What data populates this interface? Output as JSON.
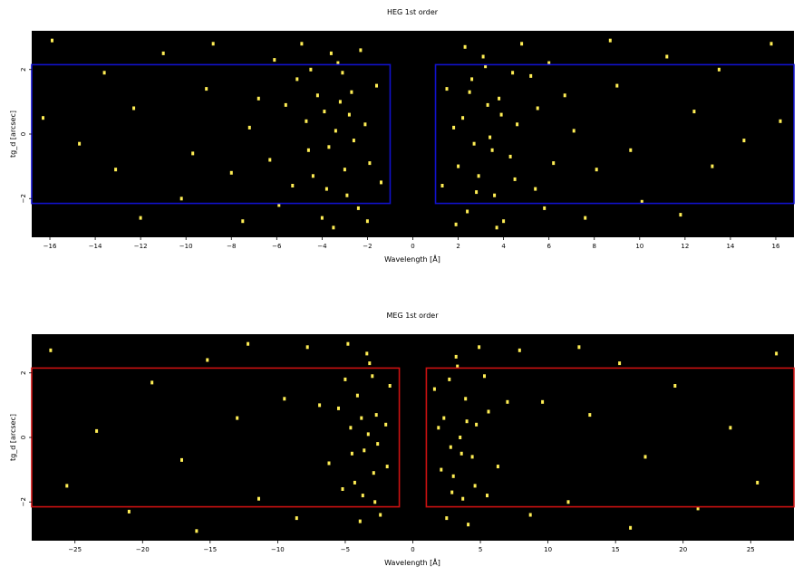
{
  "colors": {
    "background": "#000000",
    "events": "#ffee55",
    "heg_region": "#1111cc",
    "meg_region": "#cc1111",
    "page": "#ffffff"
  },
  "chart_data": [
    {
      "type": "scatter",
      "title": "HEG 1st order",
      "xlabel": "Wavelength [Å]",
      "ylabel": "tg_d [arcsec]",
      "xlim": [
        -16.8,
        16.8
      ],
      "ylim": [
        -3.2,
        3.2
      ],
      "xticks": [
        -16,
        -14,
        -12,
        -10,
        -8,
        -6,
        -4,
        -2,
        0,
        2,
        4,
        6,
        8,
        10,
        12,
        14,
        16
      ],
      "xtick_labels": [
        "−16",
        "−14",
        "−12",
        "−10",
        "−8",
        "−6",
        "−4",
        "−2",
        "0",
        "2",
        "4",
        "6",
        "8",
        "10",
        "12",
        "14",
        "16"
      ],
      "yticks": [
        -2,
        0,
        2
      ],
      "ytick_labels": [
        "−2",
        "0",
        "2"
      ],
      "grid": false,
      "regions": [
        {
          "x": [
            -17.0,
            -1.0
          ],
          "y": [
            -2.15,
            2.15
          ]
        },
        {
          "x": [
            1.0,
            17.0
          ],
          "y": [
            -2.15,
            2.15
          ]
        }
      ],
      "points": [
        [
          -3.6,
          2.5
        ],
        [
          -3.1,
          1.9
        ],
        [
          -4.2,
          1.2
        ],
        [
          -2.8,
          0.6
        ],
        [
          -3.4,
          0.1
        ],
        [
          -4.6,
          -0.5
        ],
        [
          -3.0,
          -1.1
        ],
        [
          -3.8,
          -1.7
        ],
        [
          -2.4,
          -2.3
        ],
        [
          -4.9,
          2.8
        ],
        [
          -5.6,
          0.9
        ],
        [
          -2.1,
          0.3
        ],
        [
          -1.6,
          1.5
        ],
        [
          -6.3,
          -0.8
        ],
        [
          -3.3,
          2.2
        ],
        [
          -4.0,
          -2.6
        ],
        [
          -2.6,
          -0.2
        ],
        [
          -3.9,
          0.7
        ],
        [
          -4.4,
          -1.3
        ],
        [
          -5.1,
          1.7
        ],
        [
          -2.9,
          -1.9
        ],
        [
          -3.7,
          -0.4
        ],
        [
          -1.9,
          -0.9
        ],
        [
          -5.3,
          -1.6
        ],
        [
          -4.7,
          0.4
        ],
        [
          -3.2,
          1.0
        ],
        [
          -2.3,
          2.6
        ],
        [
          -6.1,
          2.3
        ],
        [
          -7.2,
          0.2
        ],
        [
          -8.0,
          -1.2
        ],
        [
          -9.1,
          1.4
        ],
        [
          -10.2,
          -2.0
        ],
        [
          -11.0,
          2.5
        ],
        [
          -12.3,
          0.8
        ],
        [
          -13.6,
          1.9
        ],
        [
          -14.7,
          -0.3
        ],
        [
          -15.9,
          2.9
        ],
        [
          -8.8,
          2.8
        ],
        [
          -7.5,
          -2.7
        ],
        [
          -6.8,
          1.1
        ],
        [
          -4.5,
          2.0
        ],
        [
          -3.5,
          -2.9
        ],
        [
          -2.7,
          1.3
        ],
        [
          -1.4,
          -1.5
        ],
        [
          -5.9,
          -2.2
        ],
        [
          -9.7,
          -0.6
        ],
        [
          -12.0,
          -2.6
        ],
        [
          -13.1,
          -1.1
        ],
        [
          -16.3,
          0.5
        ],
        [
          -2.0,
          -2.7
        ],
        [
          3.1,
          2.4
        ],
        [
          2.6,
          1.7
        ],
        [
          3.8,
          1.1
        ],
        [
          2.2,
          0.5
        ],
        [
          3.4,
          -0.1
        ],
        [
          4.3,
          -0.7
        ],
        [
          2.9,
          -1.3
        ],
        [
          3.6,
          -1.9
        ],
        [
          2.4,
          -2.4
        ],
        [
          4.8,
          2.8
        ],
        [
          5.5,
          0.8
        ],
        [
          1.8,
          0.2
        ],
        [
          1.5,
          1.4
        ],
        [
          6.2,
          -0.9
        ],
        [
          3.2,
          2.1
        ],
        [
          4.0,
          -2.7
        ],
        [
          2.7,
          -0.3
        ],
        [
          3.9,
          0.6
        ],
        [
          4.5,
          -1.4
        ],
        [
          5.2,
          1.8
        ],
        [
          2.8,
          -1.8
        ],
        [
          3.5,
          -0.5
        ],
        [
          2.0,
          -1.0
        ],
        [
          5.4,
          -1.7
        ],
        [
          4.6,
          0.3
        ],
        [
          3.3,
          0.9
        ],
        [
          2.3,
          2.7
        ],
        [
          6.0,
          2.2
        ],
        [
          7.1,
          0.1
        ],
        [
          8.1,
          -1.1
        ],
        [
          9.0,
          1.5
        ],
        [
          10.1,
          -2.1
        ],
        [
          11.2,
          2.4
        ],
        [
          12.4,
          0.7
        ],
        [
          13.5,
          2.0
        ],
        [
          14.6,
          -0.2
        ],
        [
          15.8,
          2.8
        ],
        [
          8.7,
          2.9
        ],
        [
          7.6,
          -2.6
        ],
        [
          6.7,
          1.2
        ],
        [
          4.4,
          1.9
        ],
        [
          3.7,
          -2.9
        ],
        [
          2.5,
          1.3
        ],
        [
          1.3,
          -1.6
        ],
        [
          5.8,
          -2.3
        ],
        [
          9.6,
          -0.5
        ],
        [
          11.8,
          -2.5
        ],
        [
          13.2,
          -1.0
        ],
        [
          16.2,
          0.4
        ],
        [
          1.9,
          -2.8
        ]
      ]
    },
    {
      "type": "scatter",
      "title": "MEG 1st order",
      "xlabel": "Wavelength [Å]",
      "ylabel": "tg_d [arcsec]",
      "xlim": [
        -28.2,
        28.2
      ],
      "ylim": [
        -3.2,
        3.2
      ],
      "xticks": [
        -25,
        -20,
        -15,
        -10,
        -5,
        0,
        5,
        10,
        15,
        20,
        25
      ],
      "xtick_labels": [
        "−25",
        "−20",
        "−15",
        "−10",
        "−5",
        "0",
        "5",
        "10",
        "15",
        "20",
        "25"
      ],
      "yticks": [
        -2,
        0,
        2
      ],
      "ytick_labels": [
        "−2",
        "0",
        "2"
      ],
      "grid": false,
      "regions": [
        {
          "x": [
            -29.0,
            -1.0
          ],
          "y": [
            -2.15,
            2.15
          ]
        },
        {
          "x": [
            1.0,
            29.0
          ],
          "y": [
            -2.15,
            2.15
          ]
        }
      ],
      "points": [
        [
          -3.4,
          2.6
        ],
        [
          -3.0,
          1.9
        ],
        [
          -4.1,
          1.3
        ],
        [
          -2.7,
          0.7
        ],
        [
          -3.3,
          0.1
        ],
        [
          -4.5,
          -0.5
        ],
        [
          -2.9,
          -1.1
        ],
        [
          -3.7,
          -1.8
        ],
        [
          -2.4,
          -2.4
        ],
        [
          -4.8,
          2.9
        ],
        [
          -5.5,
          0.9
        ],
        [
          -2.0,
          0.4
        ],
        [
          -1.7,
          1.6
        ],
        [
          -6.2,
          -0.8
        ],
        [
          -3.2,
          2.3
        ],
        [
          -3.9,
          -2.6
        ],
        [
          -2.6,
          -0.2
        ],
        [
          -3.8,
          0.6
        ],
        [
          -4.3,
          -1.4
        ],
        [
          -5.0,
          1.8
        ],
        [
          -2.8,
          -2.0
        ],
        [
          -3.6,
          -0.4
        ],
        [
          -1.9,
          -0.9
        ],
        [
          -5.2,
          -1.6
        ],
        [
          -4.6,
          0.3
        ],
        [
          -7.8,
          2.8
        ],
        [
          -9.5,
          1.2
        ],
        [
          -11.4,
          -1.9
        ],
        [
          -13.0,
          0.6
        ],
        [
          -15.2,
          2.4
        ],
        [
          -17.1,
          -0.7
        ],
        [
          -19.3,
          1.7
        ],
        [
          -21.0,
          -2.3
        ],
        [
          -23.4,
          0.2
        ],
        [
          -25.6,
          -1.5
        ],
        [
          -26.8,
          2.7
        ],
        [
          -16.0,
          -2.9
        ],
        [
          -12.2,
          2.9
        ],
        [
          -8.6,
          -2.5
        ],
        [
          -6.9,
          1.0
        ],
        [
          3.2,
          2.5
        ],
        [
          2.7,
          1.8
        ],
        [
          3.9,
          1.2
        ],
        [
          2.3,
          0.6
        ],
        [
          3.5,
          0.0
        ],
        [
          4.4,
          -0.6
        ],
        [
          3.0,
          -1.2
        ],
        [
          3.7,
          -1.9
        ],
        [
          2.5,
          -2.5
        ],
        [
          4.9,
          2.8
        ],
        [
          5.6,
          0.8
        ],
        [
          1.9,
          0.3
        ],
        [
          1.6,
          1.5
        ],
        [
          6.3,
          -0.9
        ],
        [
          3.3,
          2.2
        ],
        [
          4.1,
          -2.7
        ],
        [
          2.8,
          -0.3
        ],
        [
          4.0,
          0.5
        ],
        [
          4.6,
          -1.5
        ],
        [
          5.3,
          1.9
        ],
        [
          2.9,
          -1.7
        ],
        [
          3.6,
          -0.5
        ],
        [
          2.1,
          -1.0
        ],
        [
          5.5,
          -1.8
        ],
        [
          4.7,
          0.4
        ],
        [
          7.9,
          2.7
        ],
        [
          9.6,
          1.1
        ],
        [
          11.5,
          -2.0
        ],
        [
          13.1,
          0.7
        ],
        [
          15.3,
          2.3
        ],
        [
          17.2,
          -0.6
        ],
        [
          19.4,
          1.6
        ],
        [
          21.1,
          -2.2
        ],
        [
          23.5,
          0.3
        ],
        [
          25.5,
          -1.4
        ],
        [
          26.9,
          2.6
        ],
        [
          16.1,
          -2.8
        ],
        [
          12.3,
          2.8
        ],
        [
          8.7,
          -2.4
        ],
        [
          7.0,
          1.1
        ]
      ]
    }
  ]
}
